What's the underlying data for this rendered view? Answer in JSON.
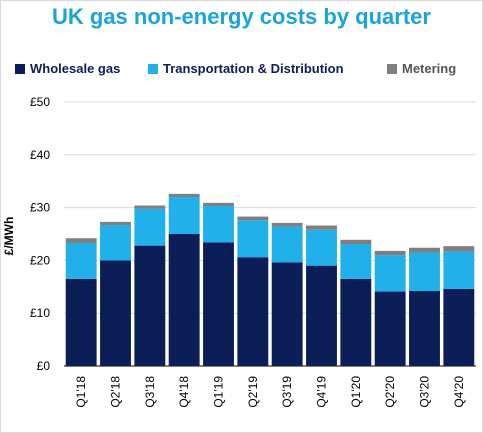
{
  "chart_data": {
    "type": "bar",
    "stacked": true,
    "title": "UK gas non-energy costs by quarter",
    "ylabel": "£/MWh",
    "xlabel": "",
    "ylim": [
      0,
      50
    ],
    "yticks": [
      0,
      10,
      20,
      30,
      40,
      50
    ],
    "ytick_labels": [
      "£0",
      "£10",
      "£20",
      "£30",
      "£40",
      "£50"
    ],
    "grid": true,
    "legend_position": "top",
    "categories": [
      "Q1'18",
      "Q2'18",
      "Q3'18",
      "Q4'18",
      "Q1'19",
      "Q2'19",
      "Q3'19",
      "Q4'19",
      "Q1'20",
      "Q2'20",
      "Q3'20",
      "Q4'20"
    ],
    "series": [
      {
        "name": "Wholesale gas",
        "color": "#0b1e58",
        "values": [
          16.5,
          20.0,
          22.8,
          25.0,
          23.4,
          20.6,
          19.6,
          19.0,
          16.5,
          14.1,
          14.2,
          14.6
        ]
      },
      {
        "name": "Transportation & Distribution",
        "color": "#21b0ea",
        "values": [
          6.8,
          6.7,
          7.0,
          7.0,
          6.9,
          7.0,
          6.8,
          6.8,
          6.6,
          6.9,
          7.3,
          7.1
        ]
      },
      {
        "name": "Metering",
        "color": "#7f7f7f",
        "values": [
          0.9,
          0.6,
          0.6,
          0.6,
          0.6,
          0.7,
          0.7,
          0.8,
          0.8,
          0.8,
          0.9,
          1.0
        ]
      }
    ]
  }
}
